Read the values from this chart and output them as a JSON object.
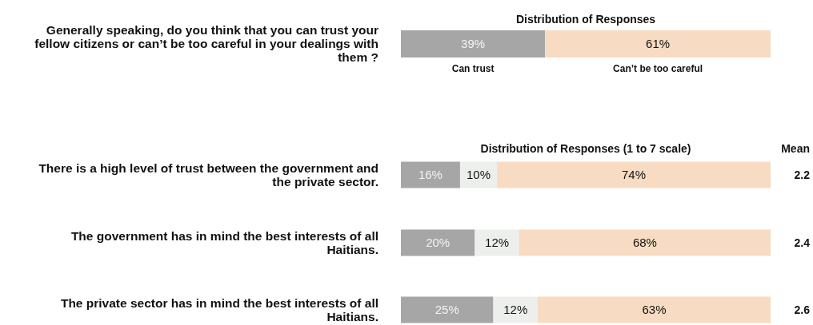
{
  "chart_data": [
    {
      "type": "bar",
      "orientation": "horizontal",
      "stacked": true,
      "title": "Distribution of Responses",
      "categories": [
        "Generally speaking, do you think that you can trust your fellow citizens or can’t be too careful in your dealings with them ?"
      ],
      "xlim": [
        0,
        100
      ],
      "tick_labels": "y",
      "series": [
        {
          "name": "Can trust",
          "color": "#a6a6a6",
          "values": [
            39
          ],
          "value_labels": [
            "39%"
          ]
        },
        {
          "name": "Can’t be too careful",
          "color": "#f7dbc2",
          "values": [
            61
          ],
          "value_labels": [
            "61%"
          ]
        }
      ]
    },
    {
      "type": "bar",
      "orientation": "horizontal",
      "stacked": true,
      "title": "Distribution of Responses (1 to 7 scale)",
      "categories": [
        "There is a high level of trust between the government and the private sector.",
        "The government has in mind the best interests of all Haitians.",
        "The private sector has in mind the best interests of all Haitians."
      ],
      "xlim": [
        0,
        100
      ],
      "tick_labels": "y",
      "annotations": [
        "Mean",
        "2.2",
        "2.4",
        "2.6"
      ],
      "series": [
        {
          "color": "#a6a6a6",
          "values": [
            16,
            20,
            25
          ],
          "value_labels": [
            "16%",
            "20%",
            "25%"
          ]
        },
        {
          "color": "#edefec",
          "values": [
            10,
            12,
            12
          ],
          "value_labels": [
            "10%",
            "12%",
            "12%"
          ]
        },
        {
          "color": "#f7dbc2",
          "values": [
            74,
            68,
            63
          ],
          "value_labels": [
            "74%",
            "68%",
            "63%"
          ]
        }
      ]
    }
  ]
}
